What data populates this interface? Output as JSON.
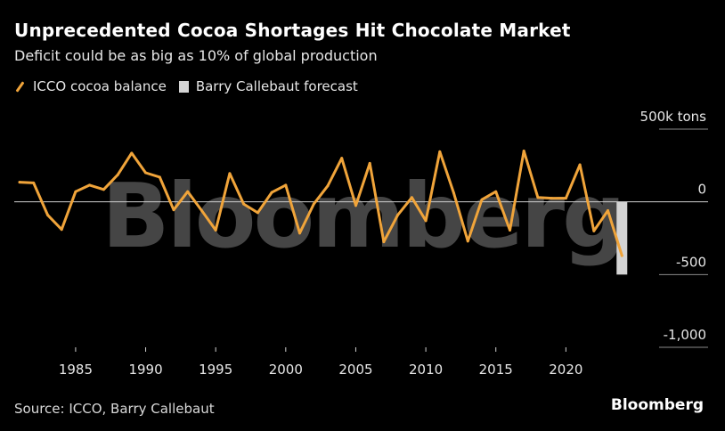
{
  "chart_data": {
    "type": "line",
    "title": "Unprecedented Cocoa Shortages Hit Chocolate Market",
    "subtitle": "Deficit could be as big as 10% of global production",
    "legend": [
      {
        "name": "ICCO cocoa balance",
        "color": "#f0a43a",
        "kind": "line"
      },
      {
        "name": "Barry Callebaut forecast",
        "color": "#d4d4d4",
        "kind": "bar"
      }
    ],
    "y_unit_label": "500k tons",
    "ylim": [
      -1000,
      500
    ],
    "y_ticks": [
      {
        "value": 500,
        "label": "500k tons"
      },
      {
        "value": 0,
        "label": "0"
      },
      {
        "value": -500,
        "label": "-500"
      },
      {
        "value": -1000,
        "label": "-1,000"
      }
    ],
    "xlim": [
      1981,
      2025
    ],
    "x_ticks": [
      1985,
      1990,
      1995,
      2000,
      2005,
      2010,
      2015,
      2020
    ],
    "series": [
      {
        "name": "ICCO cocoa balance",
        "x": [
          1981,
          1982,
          1983,
          1984,
          1985,
          1986,
          1987,
          1988,
          1989,
          1990,
          1991,
          1992,
          1993,
          1994,
          1995,
          1996,
          1997,
          1998,
          1999,
          2000,
          2001,
          2002,
          2003,
          2004,
          2005,
          2006,
          2007,
          2008,
          2009,
          2010,
          2011,
          2012,
          2013,
          2014,
          2015,
          2016,
          2017,
          2018,
          2019,
          2020,
          2021,
          2022,
          2023,
          2024
        ],
        "values": [
          135,
          130,
          -90,
          -190,
          70,
          115,
          85,
          185,
          335,
          200,
          170,
          -55,
          70,
          -60,
          -195,
          195,
          -15,
          -75,
          65,
          115,
          -215,
          -15,
          110,
          300,
          -25,
          265,
          -275,
          -90,
          30,
          -130,
          345,
          60,
          -270,
          15,
          70,
          -195,
          350,
          30,
          25,
          25,
          255,
          -200,
          -60,
          -370
        ]
      }
    ],
    "forecast_bars": [
      {
        "name": "Barry Callebaut forecast",
        "x": 2024,
        "value": -500
      }
    ],
    "grid": true,
    "legend_position": "top-left"
  },
  "source": "Source: ICCO, Barry Callebaut",
  "brand": "Bloomberg",
  "watermark": "Bloomberg"
}
